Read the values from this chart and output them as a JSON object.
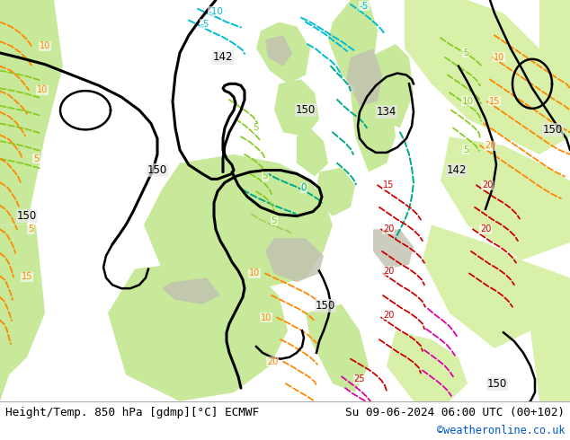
{
  "title_left": "Height/Temp. 850 hPa [gdmp][°C] ECMWF",
  "title_right": "Su 09-06-2024 06:00 UTC (00+102)",
  "credit": "©weatheronline.co.uk",
  "fig_width": 6.34,
  "fig_height": 4.9,
  "bottom_bar_color": "#f0f0f0",
  "text_color_left": "#000000",
  "text_color_right": "#000000",
  "credit_color": "#0055cc",
  "font_size_labels": 9.2,
  "font_size_credit": 8.5,
  "ocean_color": "#e8e8e8",
  "land_color": "#c8e89a",
  "land_color2": "#d8f0a8",
  "mountain_color": "#b8b8b8",
  "black_line_color": "#000000",
  "cyan_color": "#00bcd4",
  "teal_color": "#00aa88",
  "green_color": "#88cc22",
  "orange_color": "#ff8800",
  "red_color": "#cc0000",
  "magenta_color": "#dd00aa"
}
